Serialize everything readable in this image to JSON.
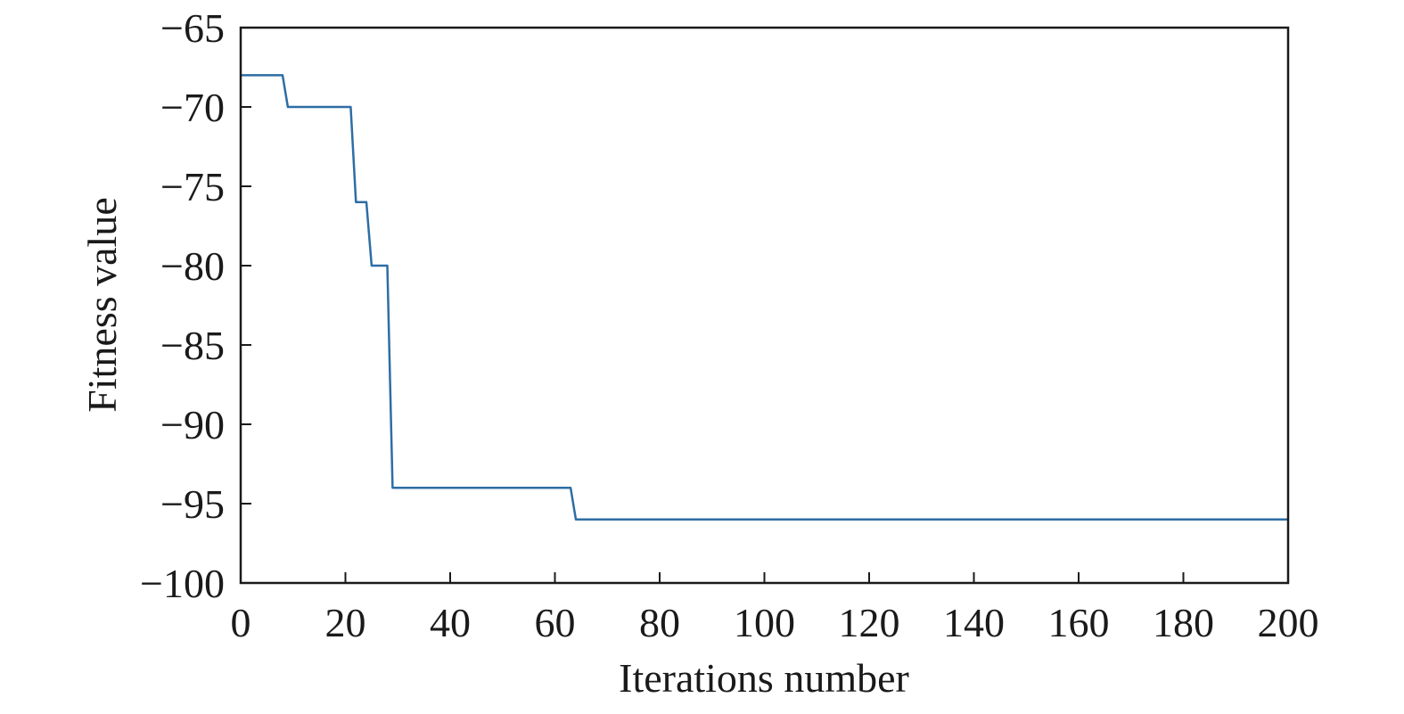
{
  "chart_data": {
    "type": "line",
    "title": "",
    "xlabel": "Iterations number",
    "ylabel": "Fitness value",
    "xlim": [
      0,
      200
    ],
    "ylim": [
      -100,
      -65
    ],
    "x_ticks": [
      0,
      20,
      40,
      60,
      80,
      100,
      120,
      140,
      160,
      180,
      200
    ],
    "y_ticks": [
      -65,
      -70,
      -75,
      -80,
      -85,
      -90,
      -95,
      -100
    ],
    "x_tick_labels": [
      "0",
      "20",
      "40",
      "60",
      "80",
      "100",
      "120",
      "140",
      "160",
      "180",
      "200"
    ],
    "y_tick_labels": [
      "−65",
      "−70",
      "−75",
      "−80",
      "−85",
      "−90",
      "−95",
      "−100"
    ],
    "grid": false,
    "legend": "none",
    "line_color": "#2e6da4",
    "series": [
      {
        "x": [
          0,
          8,
          9,
          21,
          22,
          24,
          25,
          28,
          29,
          63,
          64,
          200
        ],
        "y": [
          -68,
          -68,
          -70,
          -70,
          -76,
          -76,
          -80,
          -80,
          -94,
          -94,
          -96,
          -96
        ]
      }
    ]
  }
}
